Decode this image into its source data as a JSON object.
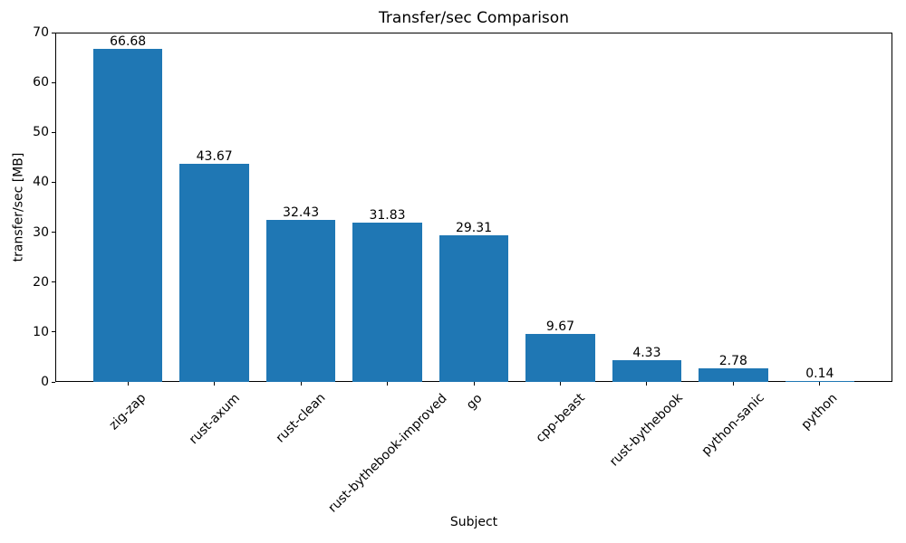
{
  "chart_data": {
    "type": "bar",
    "title": "Transfer/sec Comparison",
    "xlabel": "Subject",
    "ylabel": "transfer/sec [MB]",
    "categories": [
      "zig-zap",
      "rust-axum",
      "rust-clean",
      "rust-bythebook-improved",
      "go",
      "cpp-beast",
      "rust-bythebook",
      "python-sanic",
      "python"
    ],
    "values": [
      66.68,
      43.67,
      32.43,
      31.83,
      29.31,
      9.67,
      4.33,
      2.78,
      0.14
    ],
    "bar_labels": [
      "66.68",
      "43.67",
      "32.43",
      "31.83",
      "29.31",
      "9.67",
      "4.33",
      "2.78",
      "0.14"
    ],
    "ylim": [
      0,
      70
    ],
    "yticks": [
      0,
      10,
      20,
      30,
      40,
      50,
      60,
      70
    ],
    "bar_color": "#1f77b4",
    "text_color": "#000000",
    "background_color": "#ffffff",
    "grid": false,
    "legend": "none",
    "xtick_rotation": 45
  }
}
